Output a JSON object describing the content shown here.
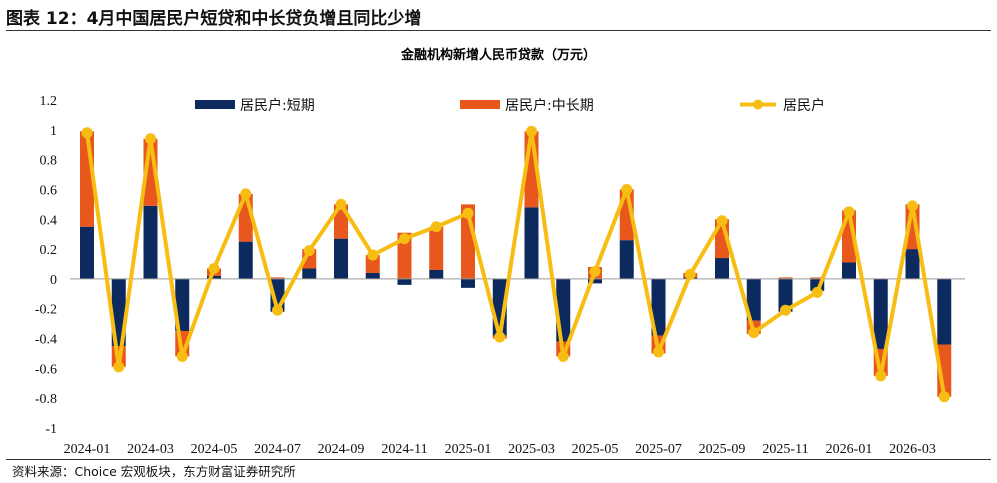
{
  "figure_title": "图表 12：4月中国居民户短贷和中长贷负增且同比少增",
  "source": "资料来源：Choice 宏观板块，东方财富证券研究所",
  "colors": {
    "short": "#0d2a5e",
    "long": "#e8571b",
    "total": "#f7bd12"
  },
  "chart_data": {
    "type": "bar",
    "stacked": true,
    "title": "金融机构新增人民币贷款（万元）",
    "xlabel": "",
    "ylabel": "",
    "ylim": [
      -1,
      1.2
    ],
    "y_ticks": [
      1.2,
      1,
      0.8,
      0.6,
      0.4,
      0.2,
      0,
      -0.2,
      -0.4,
      -0.6,
      -0.8,
      -1
    ],
    "y_tick_labels": [
      "1.2",
      "1",
      "0.8",
      "0.6",
      "0.4",
      "0.2",
      "0",
      "-0.2",
      "-0.4",
      "-0.6",
      "-0.8",
      "-1"
    ],
    "x_tick_labels": [
      "2024-01",
      "2024-03",
      "2024-05",
      "2024-07",
      "2024-09",
      "2024-11",
      "2025-01",
      "2025-03",
      "2025-05",
      "2025-07",
      "2025-09",
      "2025-11",
      "2026-01",
      "2026-03"
    ],
    "categories": [
      "2024-01",
      "2024-02",
      "2024-03",
      "2024-04",
      "2024-05",
      "2024-06",
      "2024-07",
      "2024-08",
      "2024-09",
      "2024-10",
      "2024-11",
      "2024-12",
      "2025-01",
      "2025-02",
      "2025-03",
      "2025-04",
      "2025-05",
      "2025-06",
      "2025-07",
      "2025-08",
      "2025-09",
      "2025-10",
      "2025-11",
      "2025-12",
      "2026-01",
      "2026-02",
      "2026-03",
      "2026-04"
    ],
    "legend_position": "top",
    "grid": false,
    "series": [
      {
        "name": "居民户:短期",
        "kind": "bar",
        "values": [
          0.35,
          -0.45,
          0.49,
          -0.35,
          0.02,
          0.25,
          -0.22,
          0.07,
          0.27,
          0.04,
          -0.04,
          0.06,
          -0.06,
          -0.38,
          0.48,
          -0.42,
          -0.03,
          0.26,
          -0.38,
          0.01,
          0.14,
          -0.28,
          -0.22,
          -0.08,
          0.11,
          -0.47,
          0.2,
          -0.44
        ]
      },
      {
        "name": "居民户:中长期",
        "kind": "bar",
        "values": [
          0.64,
          -0.14,
          0.45,
          -0.17,
          0.05,
          0.32,
          0.01,
          0.13,
          0.23,
          0.12,
          0.31,
          0.29,
          0.5,
          -0.02,
          0.51,
          -0.1,
          0.08,
          0.34,
          -0.12,
          0.03,
          0.26,
          -0.09,
          0.01,
          0.01,
          0.35,
          -0.18,
          0.3,
          -0.35
        ]
      },
      {
        "name": "居民户",
        "kind": "line",
        "values": [
          0.98,
          -0.59,
          0.94,
          -0.52,
          0.07,
          0.57,
          -0.21,
          0.19,
          0.5,
          0.16,
          0.27,
          0.35,
          0.44,
          -0.39,
          0.99,
          -0.52,
          0.05,
          0.6,
          -0.49,
          0.03,
          0.39,
          -0.36,
          -0.21,
          -0.09,
          0.45,
          -0.65,
          0.49,
          -0.79
        ]
      }
    ]
  }
}
